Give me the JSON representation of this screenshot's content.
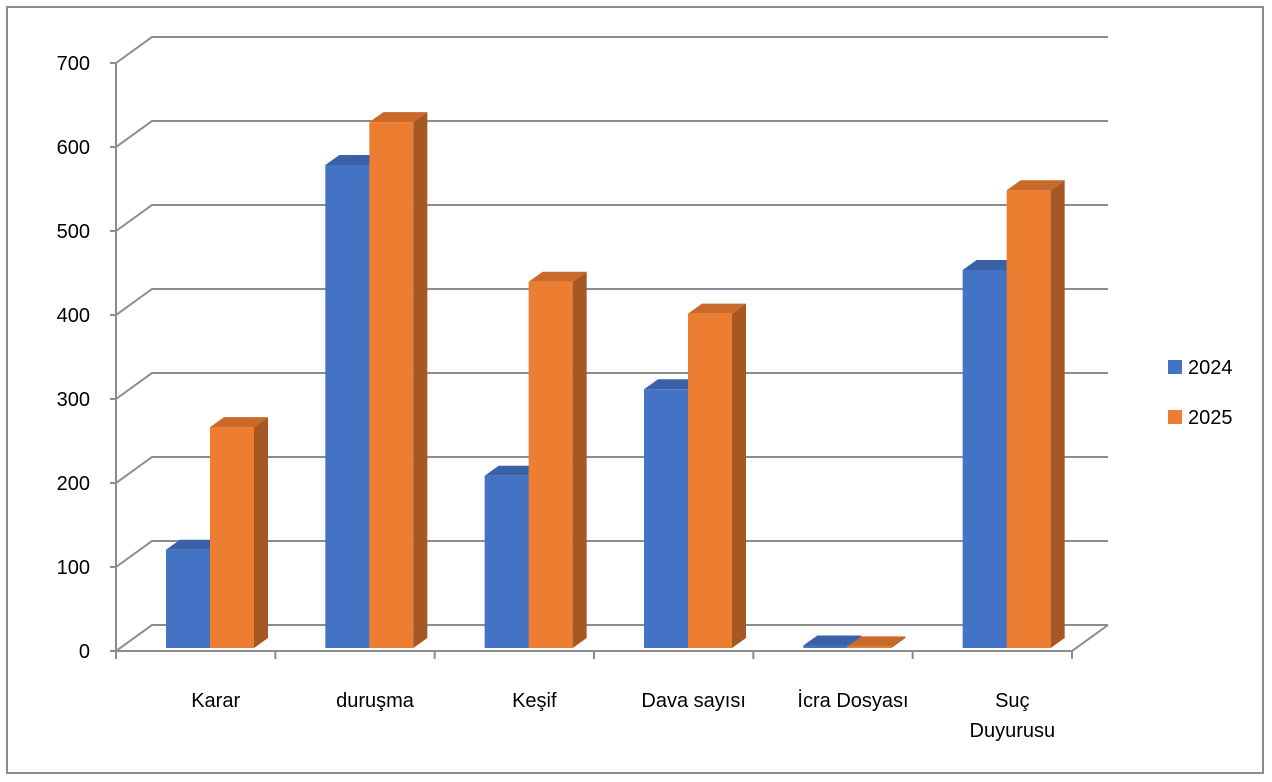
{
  "chart_data": {
    "type": "bar",
    "title": "",
    "xlabel": "",
    "ylabel": "",
    "categories": [
      "Karar",
      "duruşma",
      "Keşif",
      "Dava sayısı",
      "İcra Dosyası",
      "Suç Duyurusu"
    ],
    "category_lines": [
      [
        "Karar"
      ],
      [
        "duruşma"
      ],
      [
        "Keşif"
      ],
      [
        "Dava sayısı"
      ],
      [
        "İcra Dosyası"
      ],
      [
        "Suç",
        "Duyurusu"
      ]
    ],
    "series": [
      {
        "name": "2024",
        "color": "#4472C4",
        "values": [
          117,
          575,
          205,
          308,
          3,
          450
        ]
      },
      {
        "name": "2025",
        "color": "#ED7D31",
        "values": [
          263,
          626,
          436,
          398,
          2,
          545
        ]
      }
    ],
    "yticks": [
      "0",
      "100",
      "200",
      "300",
      "400",
      "500",
      "600",
      "700"
    ],
    "ylim": [
      0,
      700
    ],
    "grid": true,
    "legend_position": "right",
    "style": "3d-clustered-column"
  }
}
